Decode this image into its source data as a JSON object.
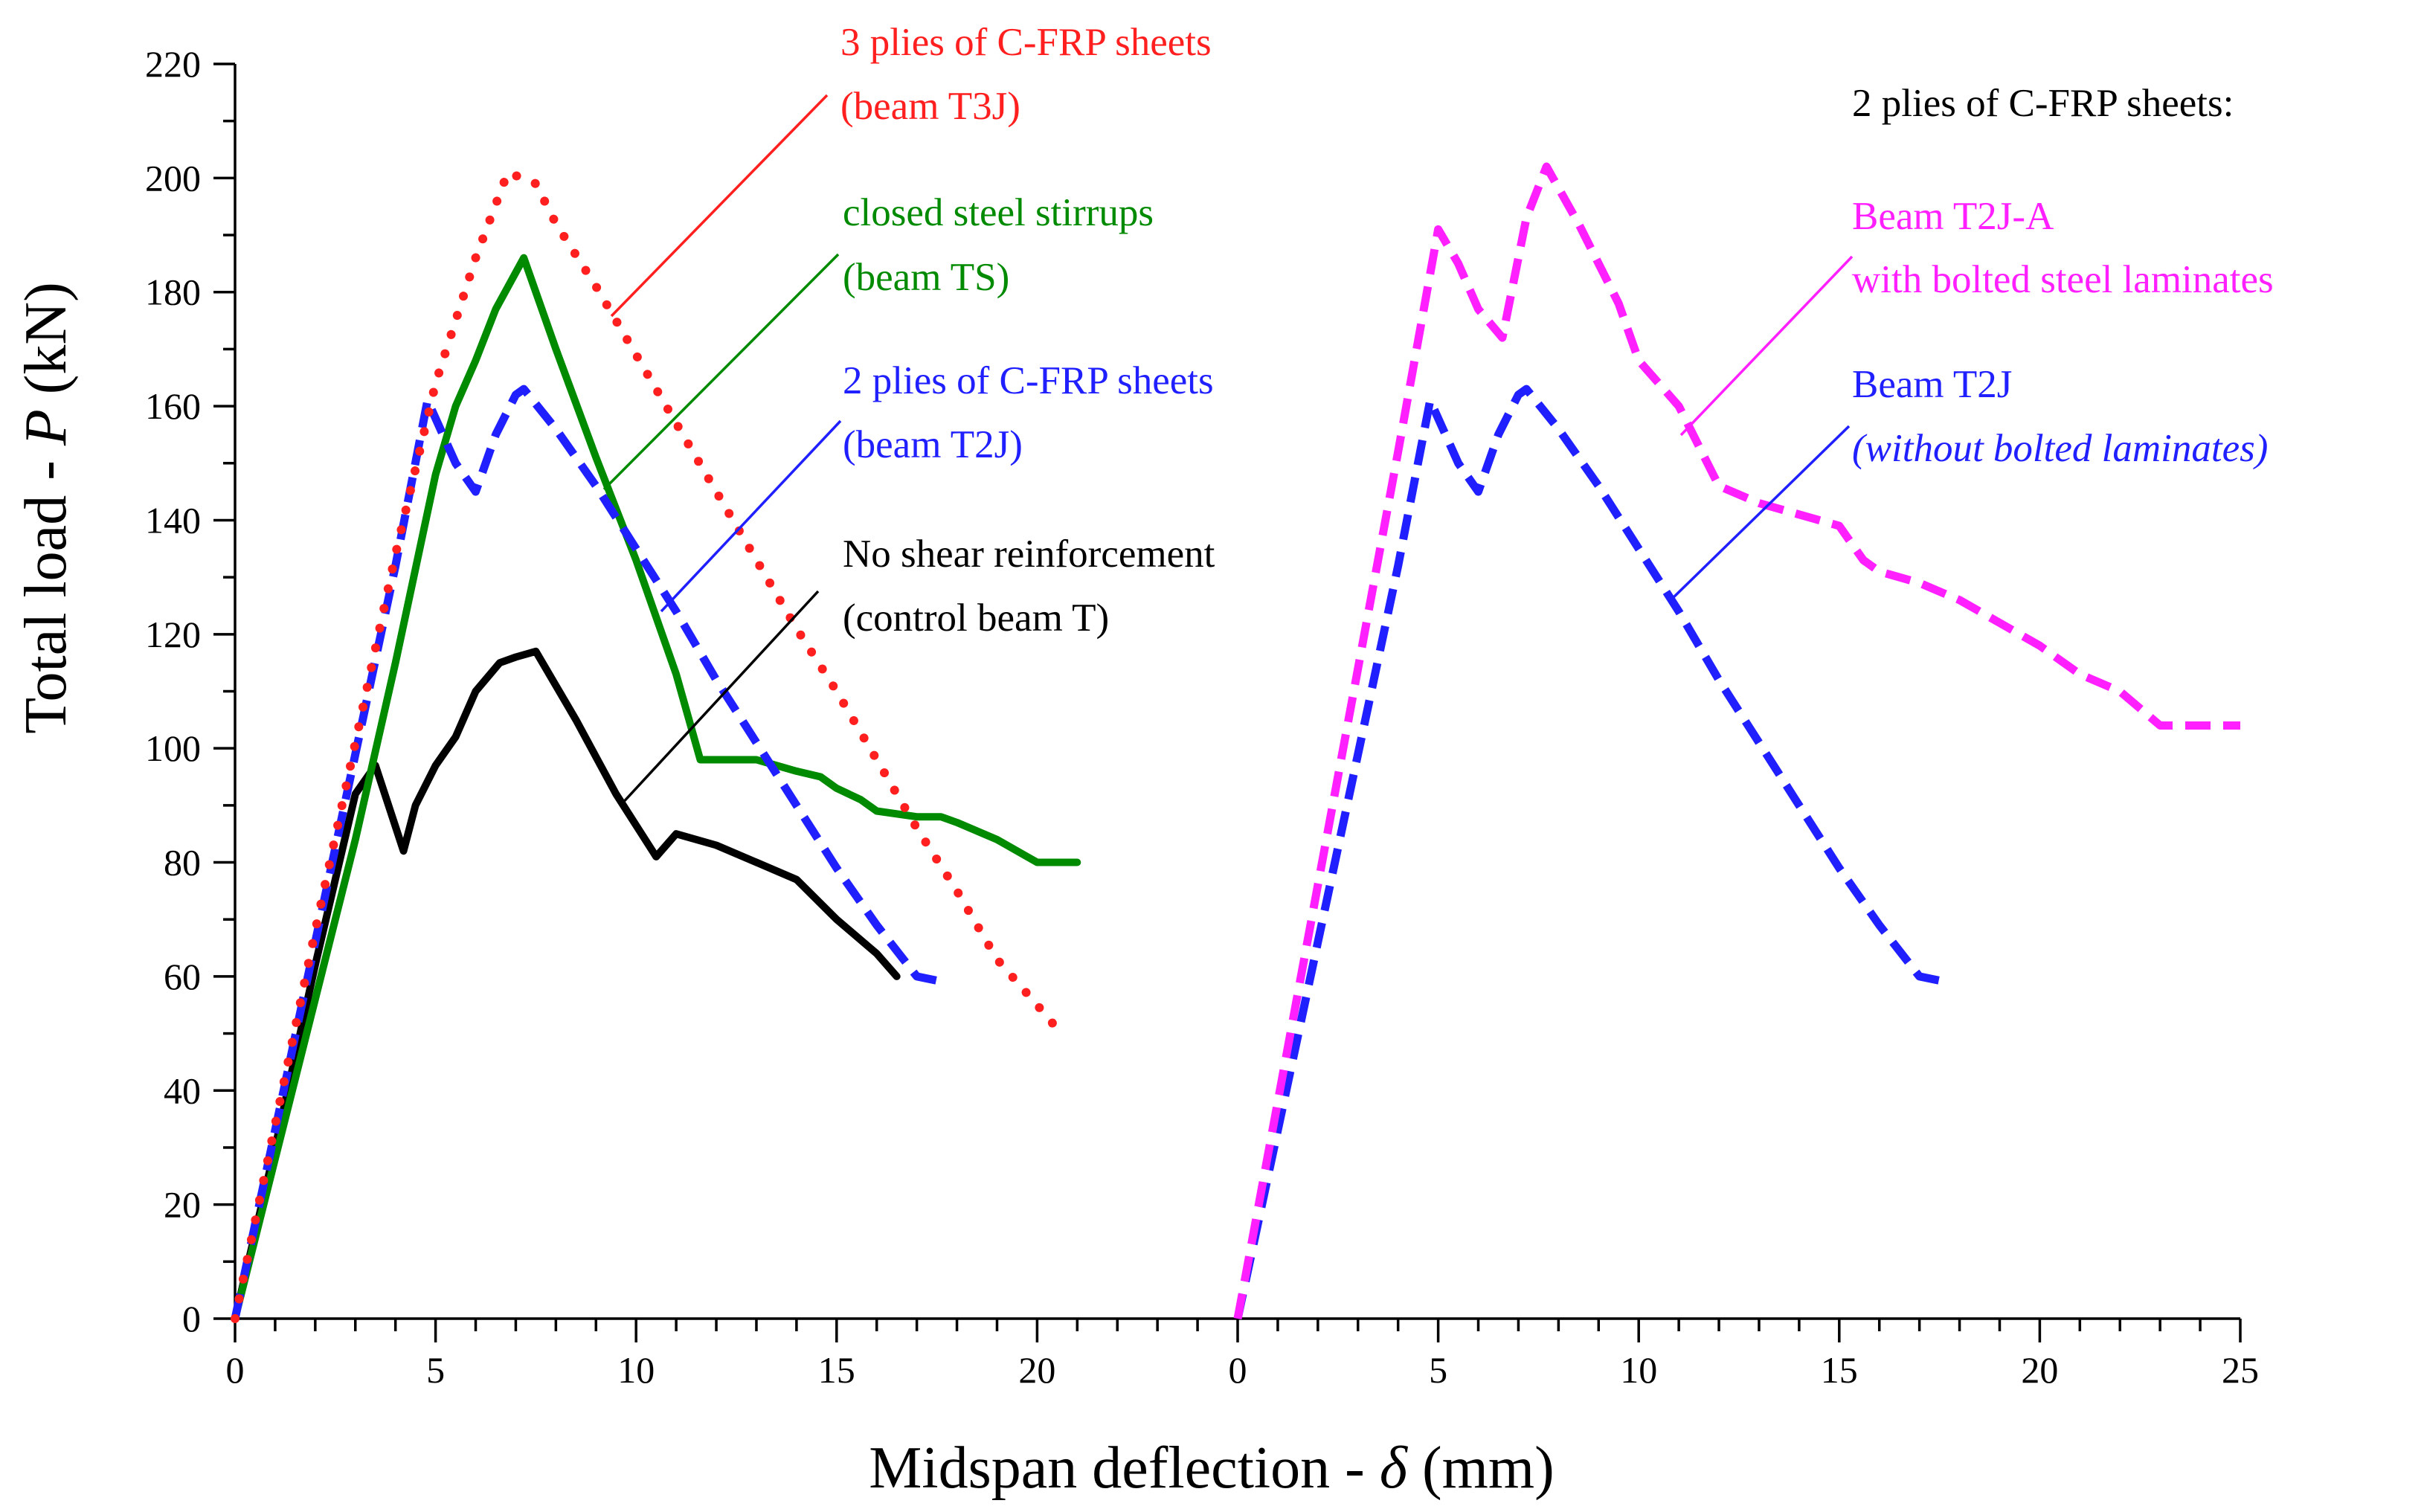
{
  "chart_data": {
    "type": "line",
    "ylabel_prefix": "Total load - ",
    "ylabel_var": "P",
    "ylabel_suffix": " (kN)",
    "xlabel_prefix": "Midspan deflection - ",
    "xlabel_var": "δ",
    "xlabel_suffix": " (mm)",
    "ylim": [
      0,
      220
    ],
    "y_ticks": [
      "0",
      "20",
      "40",
      "60",
      "80",
      "100",
      "120",
      "140",
      "160",
      "180",
      "200",
      "220"
    ],
    "panels": [
      {
        "name": "left",
        "xlim": [
          0,
          25
        ],
        "x_ticks": [
          "0",
          "5",
          "10",
          "15",
          "20"
        ],
        "series": [
          {
            "name": "No shear reinforcement (control beam T)",
            "color": "#000000",
            "style": "solid",
            "x": [
              0,
              1,
              2,
              3,
              3.5,
              4.2,
              4.5,
              5,
              5.5,
              6,
              6.6,
              7,
              7.5,
              8.5,
              9.5,
              10.5,
              11,
              12,
              13,
              14,
              15,
              16,
              16.5
            ],
            "y": [
              0,
              30,
              62,
              92,
              97,
              82,
              90,
              97,
              102,
              110,
              115,
              116,
              117,
              105,
              92,
              81,
              85,
              83,
              80,
              77,
              70,
              64,
              60
            ]
          },
          {
            "name": "closed steel stirrups (beam TS)",
            "color": "#008a00",
            "style": "solid",
            "x": [
              0,
              1,
              2,
              3,
              4,
              5,
              5.5,
              6,
              6.5,
              7.2,
              8,
              9,
              10,
              11,
              11.6,
              12,
              13,
              13.5,
              14,
              14.6,
              15,
              15.6,
              16,
              17,
              17.6,
              18,
              19,
              20,
              21
            ],
            "y": [
              0,
              28,
              56,
              84,
              115,
              148,
              160,
              168,
              177,
              186,
              170,
              151,
              133,
              113,
              98,
              98,
              98,
              97,
              96,
              95,
              93,
              91,
              89,
              88,
              88,
              87,
              84,
              80,
              80
            ]
          },
          {
            "name": "2 plies of C-FRP sheets (beam T2J)",
            "color": "#1f1fff",
            "style": "dashed",
            "x": [
              0,
              1,
              2,
              3,
              4,
              4.8,
              5.5,
              6,
              6.5,
              7,
              7.2,
              8,
              9,
              10,
              11,
              12,
              13,
              14,
              15,
              16,
              17,
              17.7
            ],
            "y": [
              0,
              33,
              66,
              99,
              132,
              161,
              150,
              145,
              155,
              162,
              163,
              156,
              146,
              135,
              124,
              112,
              101,
              90,
              79,
              69,
              60,
              59
            ]
          },
          {
            "name": "3 plies of C-FRP sheets (beam T3J)",
            "color": "#ff1f1f",
            "style": "dotted",
            "x": [
              0,
              1,
              2,
              3,
              4,
              5,
              6,
              6.8,
              7.5,
              8,
              9,
              10,
              11,
              12,
              13,
              14,
              15,
              16,
              17,
              18,
              19,
              20,
              20.6
            ],
            "y": [
              0,
              34,
              68,
              101,
              134,
              164,
              186,
              201,
              199,
              192,
              181,
              169,
              157,
              145,
              133,
              121,
              110,
              98,
              86,
              75,
              63,
              55,
              50
            ]
          }
        ]
      },
      {
        "name": "right",
        "xlim": [
          0,
          25
        ],
        "x_ticks": [
          "0",
          "5",
          "10",
          "15",
          "20",
          "25"
        ],
        "series": [
          {
            "name": "Beam T2J (without bolted laminates)",
            "color": "#1f1fff",
            "style": "dashed",
            "x": [
              0,
              1,
              2,
              3,
              4,
              4.8,
              5.5,
              6,
              6.5,
              7,
              7.2,
              8,
              9,
              10,
              11,
              12,
              13,
              14,
              15,
              16,
              17,
              17.7
            ],
            "y": [
              0,
              33,
              66,
              99,
              132,
              161,
              150,
              145,
              155,
              162,
              163,
              156,
              146,
              135,
              124,
              112,
              101,
              90,
              79,
              69,
              60,
              59
            ]
          },
          {
            "name": "Beam T2J-A with bolted steel laminates",
            "color": "#ff1fff",
            "style": "dashed",
            "x": [
              0,
              1,
              2,
              3,
              4,
              5,
              5.5,
              6,
              6.6,
              7.2,
              7.7,
              8.5,
              9.5,
              10,
              11,
              12,
              13,
              14,
              15,
              15.6,
              16,
              17,
              18,
              19,
              20,
              21,
              22,
              23,
              24,
              25
            ],
            "y": [
              0,
              38,
              76,
              114,
              152,
              191,
              185,
              177,
              172,
              193,
              202,
              192,
              178,
              168,
              160,
              146,
              143,
              141,
              139,
              133,
              131,
              129,
              126,
              122,
              118,
              113,
              110,
              104,
              104,
              104
            ]
          }
        ]
      }
    ],
    "annotations": {
      "t3j_line1": "3 plies of C-FRP sheets",
      "t3j_line2": "(beam T3J)",
      "ts_line1": "closed steel stirrups",
      "ts_line2": "(beam TS)",
      "t2j_line1": "2 plies of C-FRP sheets",
      "t2j_line2": "(beam T2J)",
      "t_line1": "No shear reinforcement",
      "t_line2": "(control beam T)",
      "right_header": "2 plies of C-FRP sheets:",
      "t2ja_line1": "Beam T2J-A",
      "t2ja_line2": "with bolted steel laminates",
      "t2j_right_line1": "Beam T2J",
      "t2j_right_line2": "(without bolted laminates)"
    }
  }
}
